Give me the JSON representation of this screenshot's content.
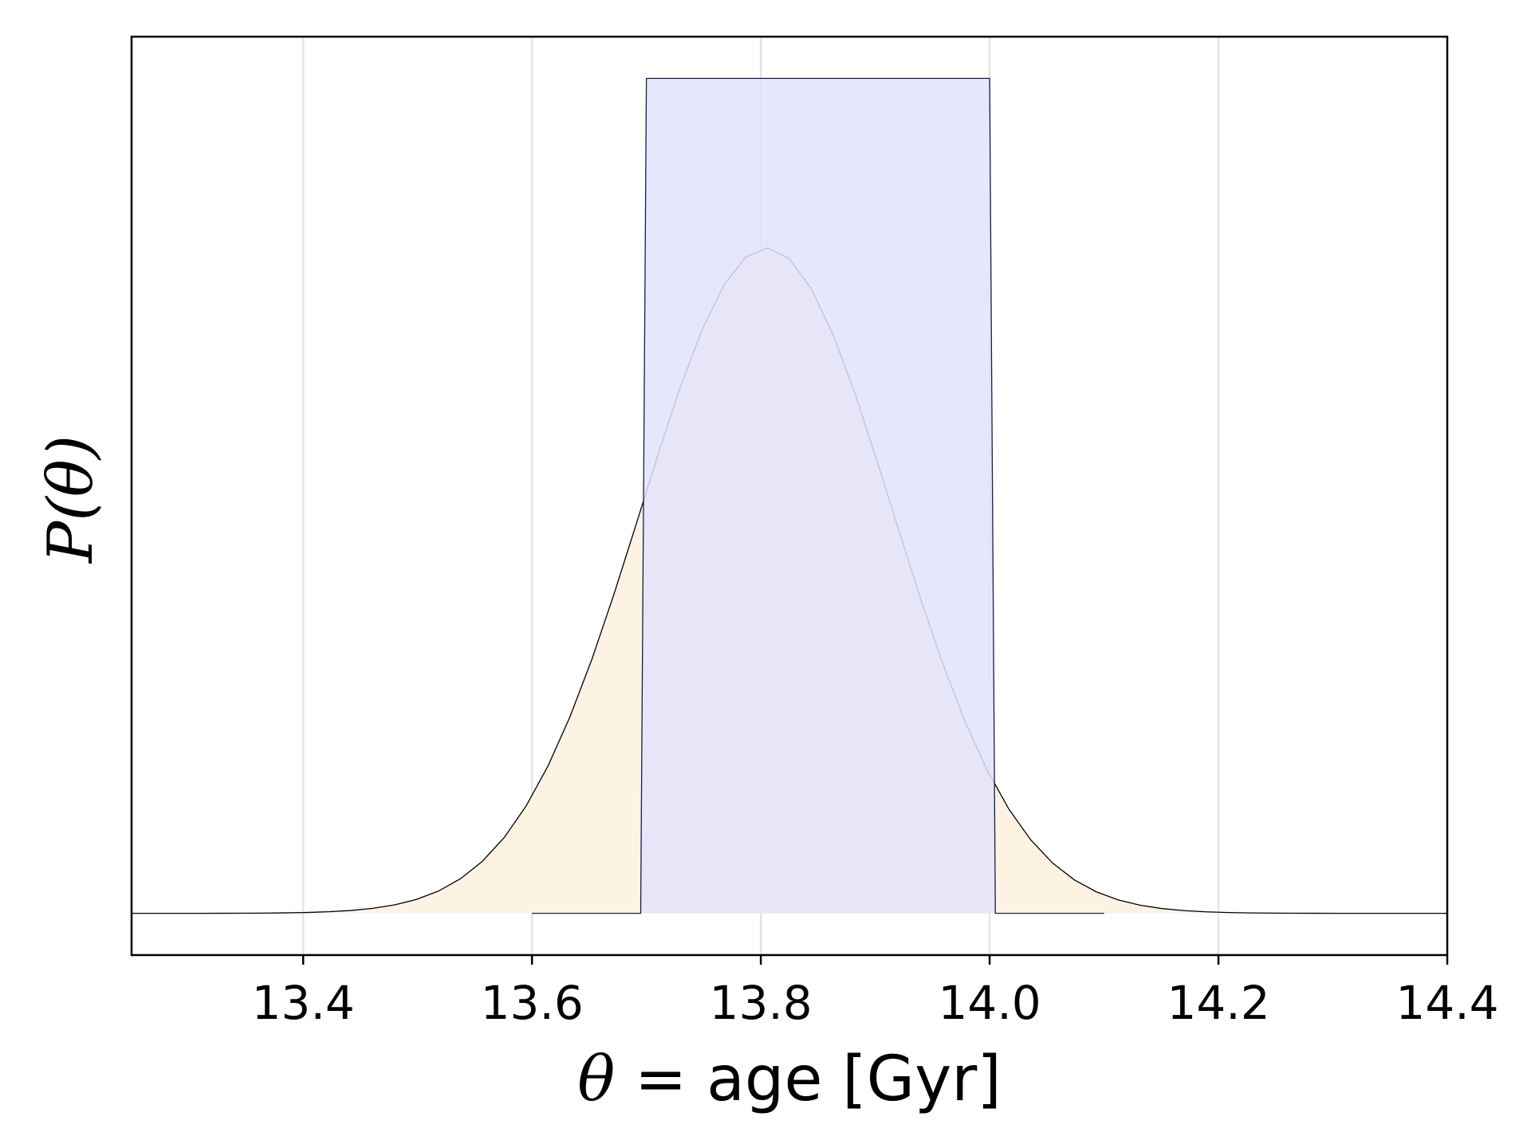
{
  "chart_data": {
    "type": "area",
    "title": "",
    "xlabel": {
      "symbol": "θ",
      "text": " = age [Gyr]"
    },
    "ylabel": {
      "prefix": "P(",
      "symbol": "θ",
      "suffix": ")"
    },
    "xlim": [
      13.25,
      14.4
    ],
    "ylim": [
      -0.05,
      1.05
    ],
    "x_ticks": [
      13.4,
      13.6,
      13.8,
      14.0,
      14.2,
      14.4
    ],
    "x_tick_labels": [
      "13.4",
      "13.6",
      "13.8",
      "14.0",
      "14.2",
      "14.4"
    ],
    "y_ticks_shown": false,
    "grid": {
      "x": true,
      "y": false
    },
    "legend": "none",
    "series": [
      {
        "kind": "gaussian",
        "mean": 13.805,
        "std": 0.11,
        "peak": 0.797,
        "x_range": [
          13.25,
          14.4
        ],
        "fill": "#fdf3e3",
        "stroke": "#000000"
      },
      {
        "kind": "uniform",
        "x_points": [
          13.6,
          13.695,
          13.7,
          14.0,
          14.005,
          14.1
        ],
        "y_points": [
          0,
          0,
          1,
          1,
          0,
          0
        ],
        "fill": "#e3e3fc",
        "stroke": "#1a1a4a"
      }
    ],
    "colors": {
      "gaussian_fill": "#fdf3e3",
      "uniform_fill": "#e3e3fc",
      "grid": "#e4e4e4",
      "axes": "#000000"
    }
  }
}
